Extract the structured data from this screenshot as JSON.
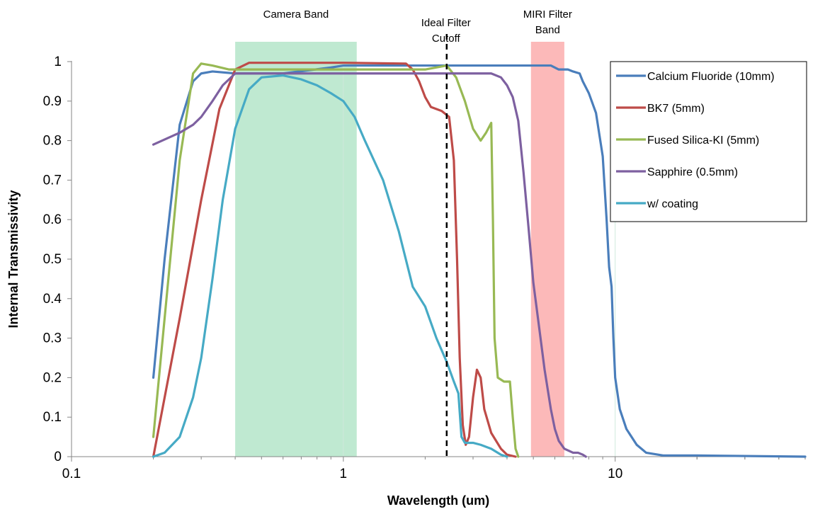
{
  "chart_data": {
    "type": "line",
    "xscale": "log",
    "xlim": [
      0.1,
      50
    ],
    "ylim": [
      0,
      1
    ],
    "xlabel": "Wavelength (um)",
    "ylabel": "Internal Transmissivity",
    "grid": false,
    "legend_position": "top-right",
    "x_ticks": [
      {
        "v": 0.1,
        "label": "0.1"
      },
      {
        "v": 1,
        "label": "1"
      },
      {
        "v": 10,
        "label": "10"
      }
    ],
    "y_ticks": [
      {
        "v": 0,
        "label": "0"
      },
      {
        "v": 0.1,
        "label": "0.1"
      },
      {
        "v": 0.2,
        "label": "0.2"
      },
      {
        "v": 0.3,
        "label": "0.3"
      },
      {
        "v": 0.4,
        "label": "0.4"
      },
      {
        "v": 0.5,
        "label": "0.5"
      },
      {
        "v": 0.6,
        "label": "0.6"
      },
      {
        "v": 0.7,
        "label": "0.7"
      },
      {
        "v": 0.8,
        "label": "0.8"
      },
      {
        "v": 0.9,
        "label": "0.9"
      },
      {
        "v": 1,
        "label": "1"
      }
    ],
    "bands": [
      {
        "name": "Camera Band",
        "label_lines": [
          "Camera Band"
        ],
        "x": [
          0.4,
          1.12
        ],
        "color": "#bfe9d1"
      },
      {
        "name": "MIRI Filter Band",
        "label_lines": [
          "MIRI Filter",
          "Band"
        ],
        "x": [
          4.9,
          6.5
        ],
        "color": "#fcb9b9"
      }
    ],
    "vlines": [
      {
        "name": "Ideal Filter Cutoff",
        "label_lines": [
          "Ideal Filter",
          "Cutoff"
        ],
        "x": 2.4,
        "style": "dashed",
        "color": "#000000"
      }
    ],
    "series": [
      {
        "name": "Calcium Fluoride (10mm)",
        "color": "#4a7ebb",
        "points": [
          [
            0.2,
            0.2
          ],
          [
            0.22,
            0.5
          ],
          [
            0.25,
            0.84
          ],
          [
            0.28,
            0.95
          ],
          [
            0.3,
            0.97
          ],
          [
            0.33,
            0.975
          ],
          [
            0.4,
            0.97
          ],
          [
            0.6,
            0.97
          ],
          [
            0.9,
            0.985
          ],
          [
            1,
            0.99
          ],
          [
            2,
            0.99
          ],
          [
            5,
            0.99
          ],
          [
            5.8,
            0.99
          ],
          [
            6.2,
            0.98
          ],
          [
            6.7,
            0.98
          ],
          [
            7,
            0.975
          ],
          [
            7.4,
            0.97
          ],
          [
            7.6,
            0.95
          ],
          [
            8,
            0.92
          ],
          [
            8.5,
            0.87
          ],
          [
            9,
            0.76
          ],
          [
            9.3,
            0.6
          ],
          [
            9.5,
            0.48
          ],
          [
            9.7,
            0.43
          ],
          [
            9.85,
            0.3
          ],
          [
            10,
            0.2
          ],
          [
            10.4,
            0.12
          ],
          [
            11,
            0.07
          ],
          [
            12,
            0.03
          ],
          [
            13,
            0.01
          ],
          [
            15,
            0.003
          ],
          [
            20,
            0.003
          ],
          [
            50,
            0
          ]
        ]
      },
      {
        "name": "BK7 (5mm)",
        "color": "#be4b48",
        "points": [
          [
            0.2,
            0
          ],
          [
            0.25,
            0.35
          ],
          [
            0.3,
            0.65
          ],
          [
            0.35,
            0.88
          ],
          [
            0.4,
            0.98
          ],
          [
            0.45,
            0.997
          ],
          [
            1,
            0.997
          ],
          [
            1.7,
            0.995
          ],
          [
            1.8,
            0.98
          ],
          [
            1.9,
            0.95
          ],
          [
            2,
            0.91
          ],
          [
            2.1,
            0.885
          ],
          [
            2.3,
            0.875
          ],
          [
            2.45,
            0.86
          ],
          [
            2.55,
            0.75
          ],
          [
            2.62,
            0.5
          ],
          [
            2.68,
            0.25
          ],
          [
            2.75,
            0.08
          ],
          [
            2.82,
            0.03
          ],
          [
            2.9,
            0.05
          ],
          [
            3,
            0.15
          ],
          [
            3.1,
            0.22
          ],
          [
            3.2,
            0.2
          ],
          [
            3.3,
            0.12
          ],
          [
            3.5,
            0.06
          ],
          [
            3.8,
            0.02
          ],
          [
            4,
            0.005
          ],
          [
            4.3,
            0
          ]
        ]
      },
      {
        "name": "Fused Silica-KI (5mm)",
        "color": "#98b954",
        "points": [
          [
            0.2,
            0.05
          ],
          [
            0.22,
            0.35
          ],
          [
            0.25,
            0.75
          ],
          [
            0.28,
            0.97
          ],
          [
            0.3,
            0.995
          ],
          [
            0.33,
            0.99
          ],
          [
            0.38,
            0.98
          ],
          [
            0.5,
            0.98
          ],
          [
            1,
            0.98
          ],
          [
            2,
            0.98
          ],
          [
            2.4,
            0.99
          ],
          [
            2.6,
            0.96
          ],
          [
            2.8,
            0.9
          ],
          [
            3,
            0.83
          ],
          [
            3.2,
            0.8
          ],
          [
            3.35,
            0.82
          ],
          [
            3.5,
            0.845
          ],
          [
            3.55,
            0.6
          ],
          [
            3.6,
            0.3
          ],
          [
            3.7,
            0.2
          ],
          [
            3.9,
            0.19
          ],
          [
            4.1,
            0.19
          ],
          [
            4.2,
            0.1
          ],
          [
            4.3,
            0.02
          ],
          [
            4.4,
            0
          ]
        ]
      },
      {
        "name": "Sapphire (0.5mm)",
        "color": "#7d60a0",
        "points": [
          [
            0.2,
            0.79
          ],
          [
            0.25,
            0.82
          ],
          [
            0.28,
            0.84
          ],
          [
            0.3,
            0.86
          ],
          [
            0.33,
            0.9
          ],
          [
            0.36,
            0.94
          ],
          [
            0.4,
            0.97
          ],
          [
            0.5,
            0.97
          ],
          [
            1,
            0.97
          ],
          [
            2,
            0.97
          ],
          [
            3,
            0.97
          ],
          [
            3.5,
            0.97
          ],
          [
            3.8,
            0.96
          ],
          [
            4,
            0.94
          ],
          [
            4.2,
            0.91
          ],
          [
            4.4,
            0.85
          ],
          [
            4.6,
            0.72
          ],
          [
            4.8,
            0.58
          ],
          [
            5,
            0.44
          ],
          [
            5.2,
            0.35
          ],
          [
            5.5,
            0.22
          ],
          [
            5.8,
            0.12
          ],
          [
            6,
            0.07
          ],
          [
            6.2,
            0.04
          ],
          [
            6.5,
            0.02
          ],
          [
            7,
            0.01
          ],
          [
            7.3,
            0.01
          ],
          [
            7.6,
            0.005
          ],
          [
            7.8,
            0
          ]
        ]
      },
      {
        "name": "w/ coating",
        "color": "#46aac5",
        "points": [
          [
            0.2,
            0
          ],
          [
            0.22,
            0.01
          ],
          [
            0.25,
            0.05
          ],
          [
            0.28,
            0.15
          ],
          [
            0.3,
            0.25
          ],
          [
            0.33,
            0.45
          ],
          [
            0.36,
            0.65
          ],
          [
            0.4,
            0.83
          ],
          [
            0.45,
            0.93
          ],
          [
            0.5,
            0.96
          ],
          [
            0.6,
            0.965
          ],
          [
            0.7,
            0.955
          ],
          [
            0.8,
            0.94
          ],
          [
            0.9,
            0.92
          ],
          [
            1,
            0.9
          ],
          [
            1.1,
            0.86
          ],
          [
            1.2,
            0.8
          ],
          [
            1.4,
            0.7
          ],
          [
            1.6,
            0.57
          ],
          [
            1.8,
            0.43
          ],
          [
            2,
            0.38
          ],
          [
            2.2,
            0.3
          ],
          [
            2.4,
            0.24
          ],
          [
            2.55,
            0.19
          ],
          [
            2.65,
            0.16
          ],
          [
            2.72,
            0.05
          ],
          [
            2.8,
            0.035
          ],
          [
            3,
            0.035
          ],
          [
            3.2,
            0.03
          ],
          [
            3.5,
            0.02
          ],
          [
            3.8,
            0.005
          ],
          [
            4,
            0
          ]
        ]
      }
    ]
  }
}
